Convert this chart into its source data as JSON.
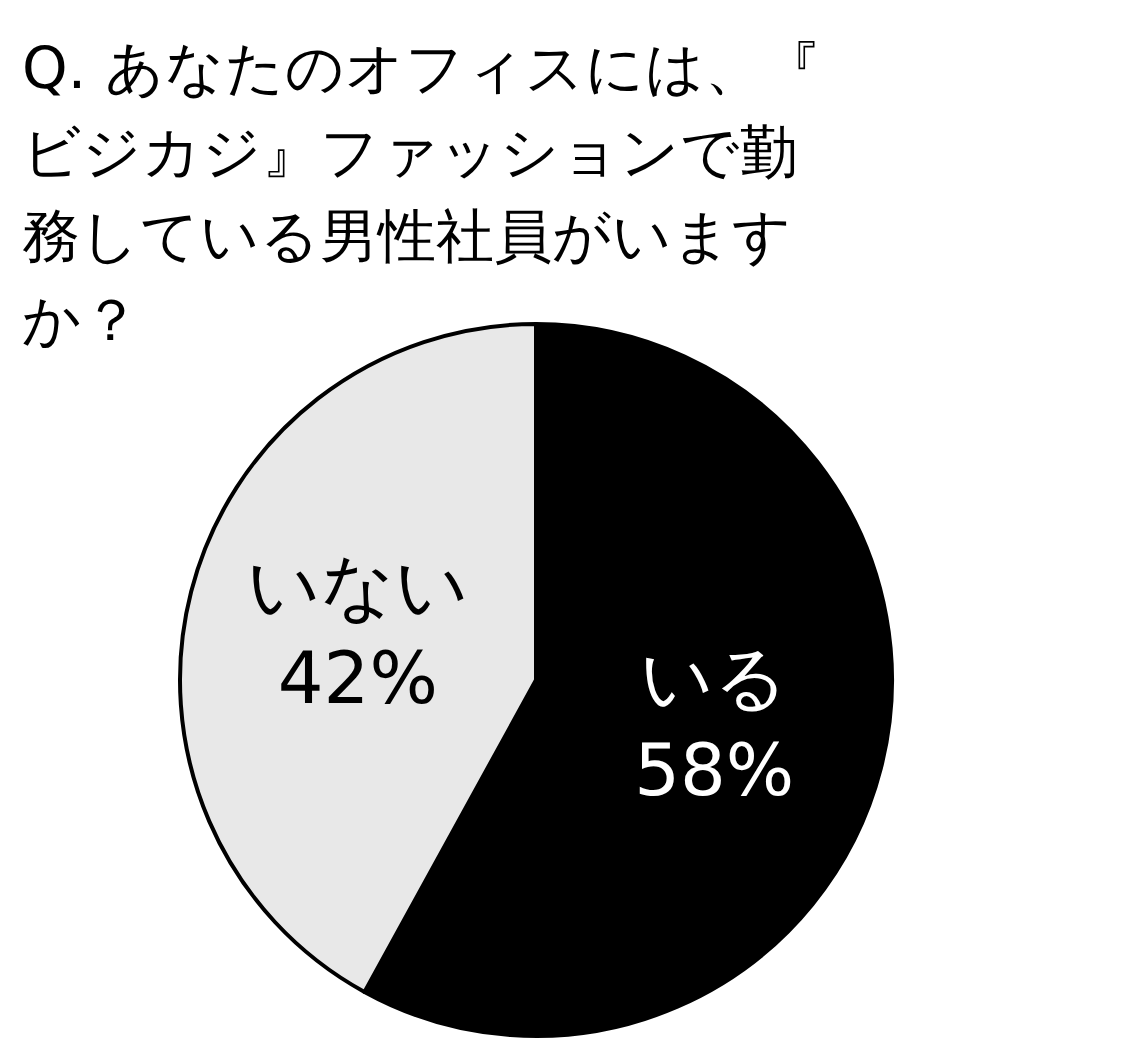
{
  "chart_data": {
    "type": "pie",
    "title": "Q. あなたのオフィスには、『ビジカジ』ファッションで勤務している男性社員がいますか？",
    "categories": [
      "いる",
      "いない"
    ],
    "values": [
      58,
      42
    ],
    "value_labels": [
      "58%",
      "42%"
    ],
    "colors": [
      "#000000",
      "#e8e8e8"
    ],
    "legend": false
  }
}
